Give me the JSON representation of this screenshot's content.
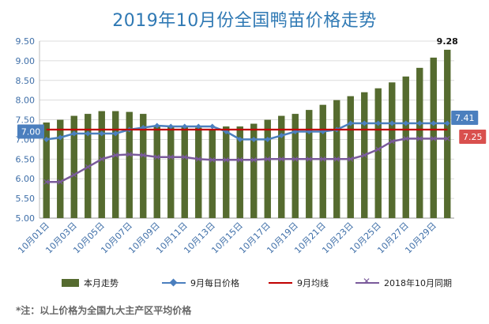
{
  "page": {
    "title": "2019年10月份全国鸭苗价格走势"
  },
  "chart_data": {
    "type": "bar",
    "ylim": [
      5.0,
      9.5
    ],
    "yticks": [
      "5.00",
      "5.50",
      "6.00",
      "6.50",
      "7.00",
      "7.50",
      "8.00",
      "8.50",
      "9.00",
      "9.50"
    ],
    "categories": [
      "10月01日",
      "10月02日",
      "10月03日",
      "10月04日",
      "10月05日",
      "10月06日",
      "10月07日",
      "10月08日",
      "10月09日",
      "10月10日",
      "10月11日",
      "10月12日",
      "10月13日",
      "10月14日",
      "10月15日",
      "10月16日",
      "10月17日",
      "10月18日",
      "10月19日",
      "10月20日",
      "10月21日",
      "10月22日",
      "10月23日",
      "10月24日",
      "10月25日",
      "10月26日",
      "10月27日",
      "10月28日",
      "10月29日",
      "10月30日"
    ],
    "x_tick_labels": [
      "10月01日",
      "10月03日",
      "10月05日",
      "10月07日",
      "10月09日",
      "10月11日",
      "10月13日",
      "10月15日",
      "10月17日",
      "10月19日",
      "10月21日",
      "10月23日",
      "10月25日",
      "10月27日",
      "10月29日"
    ],
    "series": [
      {
        "name": "本月走势",
        "type": "bar",
        "color": "#556b2f",
        "values": [
          7.43,
          7.5,
          7.6,
          7.65,
          7.72,
          7.72,
          7.7,
          7.65,
          7.35,
          7.33,
          7.33,
          7.3,
          7.25,
          7.33,
          7.33,
          7.4,
          7.5,
          7.6,
          7.65,
          7.75,
          7.88,
          8.0,
          8.1,
          8.2,
          8.3,
          8.45,
          8.6,
          8.82,
          9.08,
          9.28
        ]
      },
      {
        "name": "9月每日价格",
        "type": "line",
        "color": "#4b7fbe",
        "marker": "diamond",
        "values": [
          7.0,
          7.05,
          7.15,
          7.15,
          7.15,
          7.15,
          7.25,
          7.3,
          7.35,
          7.33,
          7.33,
          7.33,
          7.33,
          7.2,
          7.0,
          7.0,
          7.0,
          7.1,
          7.2,
          7.2,
          7.2,
          7.25,
          7.41,
          7.41,
          7.41,
          7.41,
          7.41,
          7.41,
          7.41,
          7.41
        ]
      },
      {
        "name": "9月均线",
        "type": "line",
        "color": "#c00000",
        "values": [
          7.25,
          7.25,
          7.25,
          7.25,
          7.25,
          7.25,
          7.25,
          7.25,
          7.25,
          7.25,
          7.25,
          7.25,
          7.25,
          7.25,
          7.25,
          7.25,
          7.25,
          7.25,
          7.25,
          7.25,
          7.25,
          7.25,
          7.25,
          7.25,
          7.25,
          7.25,
          7.25,
          7.25,
          7.25,
          7.25
        ]
      },
      {
        "name": "2018年10月同期",
        "type": "line",
        "color": "#7a5a9b",
        "marker": "x",
        "values": [
          5.92,
          5.92,
          6.1,
          6.3,
          6.5,
          6.6,
          6.62,
          6.6,
          6.55,
          6.55,
          6.55,
          6.5,
          6.48,
          6.48,
          6.48,
          6.48,
          6.5,
          6.5,
          6.5,
          6.5,
          6.5,
          6.5,
          6.5,
          6.6,
          6.75,
          6.95,
          7.02,
          7.02,
          7.02,
          7.02
        ]
      }
    ],
    "annotations": [
      {
        "text": "9.28",
        "series": 0,
        "index": 29,
        "style": "bar-top"
      },
      {
        "text": "7.00",
        "series": 1,
        "index": 0,
        "style": "box-left",
        "color": "#4b7fbe"
      },
      {
        "text": "7.41",
        "series": 1,
        "index": 29,
        "style": "box-right",
        "color": "#4b7fbe"
      },
      {
        "text": "7.25",
        "series": 2,
        "index": 29,
        "style": "box-right-low",
        "color": "#d9504e"
      }
    ],
    "legend_position": "bottom"
  },
  "legend": [
    {
      "label": "本月走势"
    },
    {
      "label": "9月每日价格"
    },
    {
      "label": "9月均线"
    },
    {
      "label": "2018年10月同期"
    }
  ],
  "note": "*注：以上价格为全国九大主产区平均价格"
}
